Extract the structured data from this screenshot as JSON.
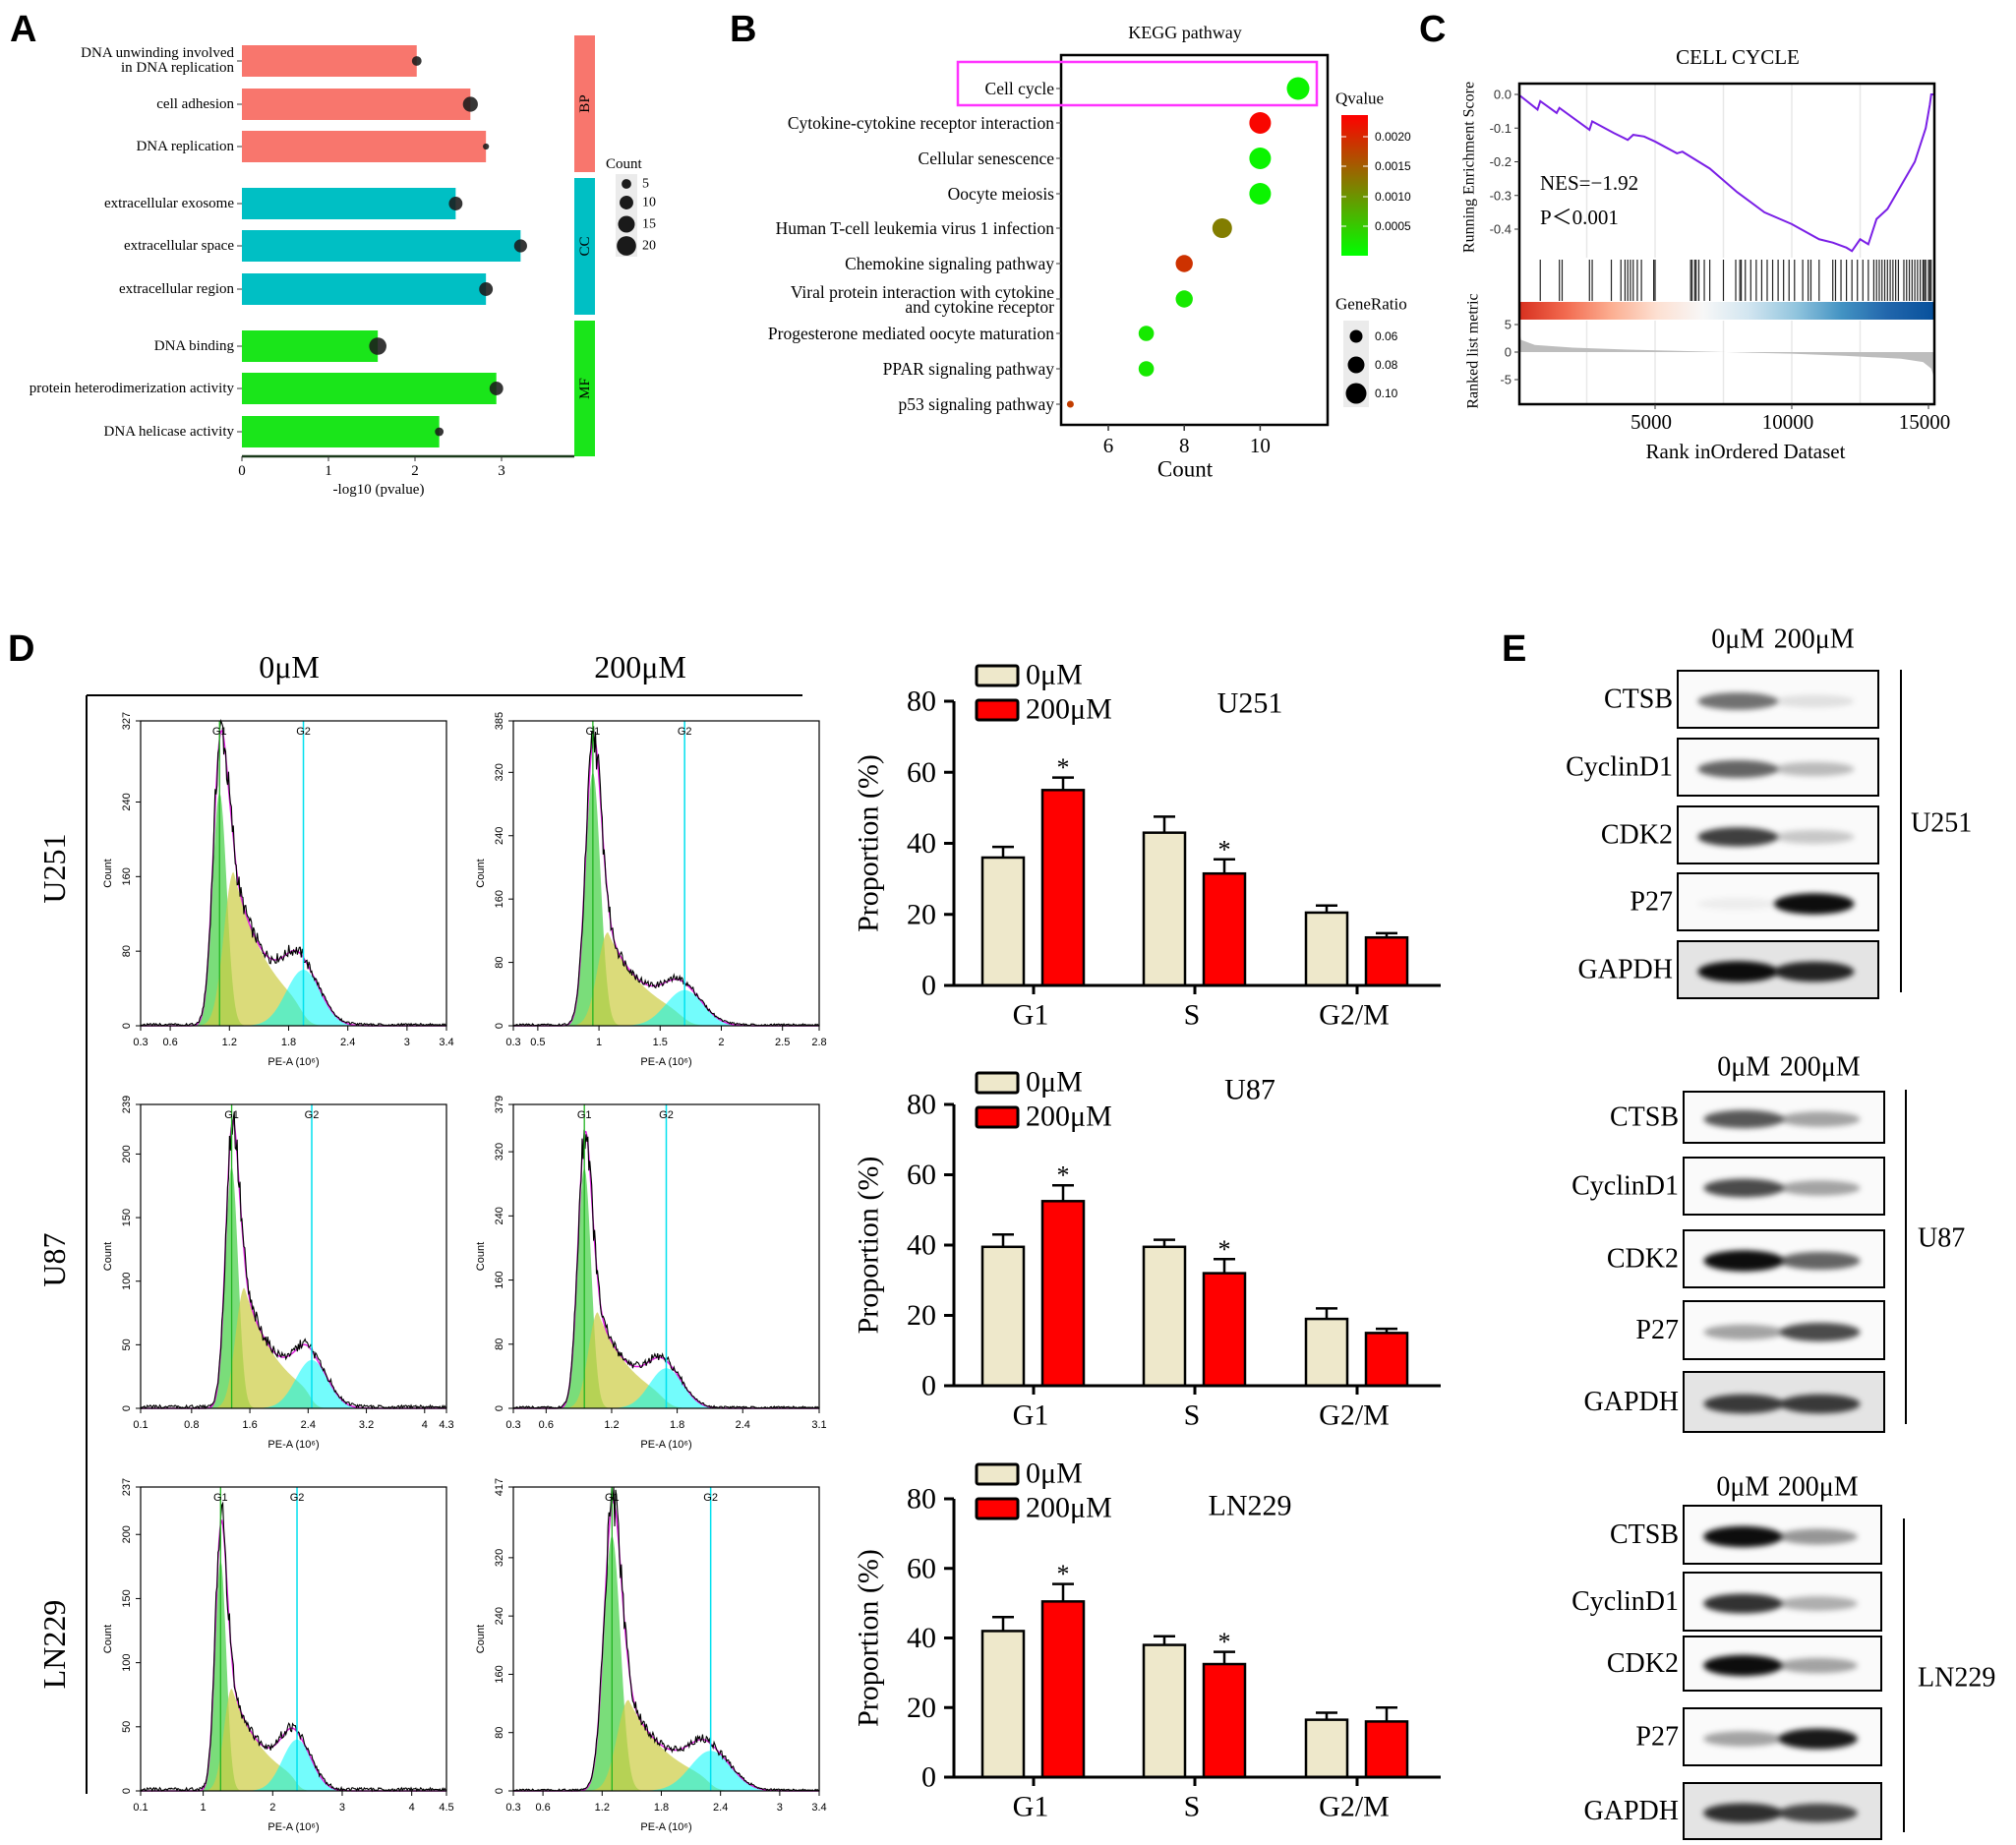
{
  "panel_labels": {
    "a": "A",
    "b": "B",
    "c": "C",
    "d": "D",
    "e": "E"
  },
  "chart_data": [
    {
      "type": "bar",
      "orientation": "horizontal",
      "xlabel": "-log10 (pvalue)",
      "xticks": [
        "0",
        "1",
        "2",
        "3"
      ],
      "groups": [
        {
          "name": "BP",
          "color": "#f8766d"
        },
        {
          "name": "CC",
          "color": "#00bfc4"
        },
        {
          "name": "MF",
          "color": "#1ae51a"
        }
      ],
      "terms": [
        {
          "lines": [
            "DNA unwinding involved",
            "in DNA replication"
          ],
          "group": "BP",
          "value": 2.02,
          "count": 5
        },
        {
          "lines": [
            "cell adhesion"
          ],
          "group": "BP",
          "value": 2.64,
          "count": 12
        },
        {
          "lines": [
            "DNA replication"
          ],
          "group": "BP",
          "value": 2.82,
          "count": 2
        },
        {
          "lines": [
            "extracellular exosome"
          ],
          "group": "CC",
          "value": 2.47,
          "count": 10
        },
        {
          "lines": [
            "extracellular space"
          ],
          "group": "CC",
          "value": 3.22,
          "count": 9
        },
        {
          "lines": [
            "extracellular region"
          ],
          "group": "CC",
          "value": 2.82,
          "count": 10
        },
        {
          "lines": [
            "DNA binding"
          ],
          "group": "MF",
          "value": 1.57,
          "count": 16
        },
        {
          "lines": [
            "protein heterodimerization activity"
          ],
          "group": "MF",
          "value": 2.94,
          "count": 10
        },
        {
          "lines": [
            "DNA helicase activity"
          ],
          "group": "MF",
          "value": 2.28,
          "count": 4
        }
      ],
      "legend": {
        "title": "Count",
        "sizes": [
          "5",
          "10",
          "15",
          "20"
        ]
      }
    },
    {
      "type": "scatter",
      "title": "KEGG pathway",
      "xlabel": "Count",
      "xticks": [
        "6",
        "8",
        "10"
      ],
      "highlighted": "Cell cycle",
      "highlight_color": "#ff33ff",
      "pathways": [
        {
          "lines": [
            "Cell cycle"
          ],
          "count": 11,
          "qvalue": 0.0001,
          "gene_ratio": 0.11
        },
        {
          "lines": [
            "Cytokine-cytokine receptor interaction"
          ],
          "count": 10,
          "qvalue": 0.0023,
          "gene_ratio": 0.105
        },
        {
          "lines": [
            "Cellular senescence"
          ],
          "count": 10,
          "qvalue": 0.0001,
          "gene_ratio": 0.105
        },
        {
          "lines": [
            "Oocyte meiosis"
          ],
          "count": 10,
          "qvalue": 0.0001,
          "gene_ratio": 0.105
        },
        {
          "lines": [
            "Human T-cell leukemia virus 1 infection"
          ],
          "count": 9,
          "qvalue": 0.0012,
          "gene_ratio": 0.095
        },
        {
          "lines": [
            "Chemokine signaling pathway"
          ],
          "count": 8,
          "qvalue": 0.0019,
          "gene_ratio": 0.082
        },
        {
          "lines": [
            "Viral protein interaction with cytokine",
            "and cytokine receptor"
          ],
          "count": 8,
          "qvalue": 0.0002,
          "gene_ratio": 0.082
        },
        {
          "lines": [
            "Progesterone mediated oocyte maturation"
          ],
          "count": 7,
          "qvalue": 0.0002,
          "gene_ratio": 0.073
        },
        {
          "lines": [
            "PPAR signaling pathway"
          ],
          "count": 7,
          "qvalue": 0.0002,
          "gene_ratio": 0.073
        },
        {
          "lines": [
            "p53 signaling pathway"
          ],
          "count": 5,
          "qvalue": 0.0018,
          "gene_ratio": 0.03
        }
      ],
      "qvalue_legend": {
        "title": "Qvalue",
        "ticks": [
          "0.0020",
          "0.0015",
          "0.0010",
          "0.0005"
        ],
        "low_color": "#00ff00",
        "high_color": "#ff0000",
        "range": [
          0,
          0.00236
        ]
      },
      "generatio_legend": {
        "title": "GeneRatio",
        "ticks": [
          "0.06",
          "0.08",
          "0.10"
        ],
        "values": [
          0.06,
          0.08,
          0.1
        ]
      }
    },
    {
      "type": "line",
      "title": "CELL CYCLE",
      "ylabel": "Running Enrichment Score",
      "ylabel_lower": "Ranked list metric",
      "xlabel": "Rank inOrdered Dataset",
      "xticks": [
        "5000",
        "10000",
        "15000"
      ],
      "yticks": [
        "0.0",
        "-0.1",
        "-0.2",
        "-0.3",
        "-0.4"
      ],
      "yticks_lower": [
        "5",
        "0",
        "-5"
      ],
      "nes_label": "NES=−1.92",
      "p_label": "P＜0.001",
      "line_color": "#7a1fe6",
      "es_curve": [
        [
          0,
          0
        ],
        [
          700,
          -0.045
        ],
        [
          800,
          -0.02
        ],
        [
          1400,
          -0.055
        ],
        [
          1500,
          -0.04
        ],
        [
          2600,
          -0.105
        ],
        [
          2700,
          -0.08
        ],
        [
          3500,
          -0.115
        ],
        [
          4000,
          -0.135
        ],
        [
          4200,
          -0.12
        ],
        [
          4600,
          -0.125
        ],
        [
          5000,
          -0.14
        ],
        [
          5800,
          -0.175
        ],
        [
          6000,
          -0.17
        ],
        [
          7000,
          -0.22
        ],
        [
          8000,
          -0.29
        ],
        [
          9000,
          -0.35
        ],
        [
          10000,
          -0.385
        ],
        [
          11000,
          -0.43
        ],
        [
          11500,
          -0.44
        ],
        [
          12000,
          -0.455
        ],
        [
          12200,
          -0.465
        ],
        [
          12500,
          -0.43
        ],
        [
          12800,
          -0.445
        ],
        [
          13100,
          -0.37
        ],
        [
          13500,
          -0.34
        ],
        [
          14000,
          -0.27
        ],
        [
          14500,
          -0.2
        ],
        [
          14900,
          -0.1
        ],
        [
          15050,
          -0.03
        ],
        [
          15100,
          0.0
        ],
        [
          15200,
          0.0
        ]
      ],
      "hits": [
        800,
        1500,
        1600,
        2600,
        2700,
        3400,
        3750,
        3900,
        4000,
        4100,
        4200,
        4350,
        4500,
        4950,
        5000,
        6300,
        6350,
        6450,
        6500,
        6600,
        6800,
        7000,
        7500,
        7950,
        8100,
        8150,
        8300,
        8500,
        8700,
        8900,
        9100,
        9300,
        9500,
        9700,
        9900,
        10100,
        10400,
        10600,
        10700,
        11000,
        11500,
        11600,
        11800,
        12000,
        12200,
        12400,
        12600,
        12800,
        13000,
        13100,
        13200,
        13300,
        13400,
        13500,
        13600,
        13700,
        13800,
        13900,
        14100,
        14200,
        14300,
        14400,
        14500,
        14600,
        14700,
        14800,
        14850,
        14900,
        15000,
        15050,
        15100
      ],
      "metric_curve": [
        [
          0,
          4.5
        ],
        [
          100,
          2.2
        ],
        [
          600,
          1.3
        ],
        [
          2000,
          0.8
        ],
        [
          4000,
          0.45
        ],
        [
          6000,
          0.2
        ],
        [
          7600,
          0
        ],
        [
          10000,
          -0.3
        ],
        [
          12000,
          -0.7
        ],
        [
          14000,
          -1.2
        ],
        [
          14800,
          -1.8
        ],
        [
          15100,
          -3.0
        ],
        [
          15200,
          -4.5
        ]
      ],
      "strip_colors": [
        "#d7301f",
        "#f26a4f",
        "#fcae91",
        "#fde0d2",
        "#f7f7f7",
        "#d1e5f0",
        "#92c5de",
        "#4393c3",
        "#2166ac",
        "#08519c"
      ]
    },
    {
      "type": "area",
      "column_headers": [
        "0μM",
        "200μM"
      ],
      "row_labels": [
        "U251",
        "U87",
        "LN229"
      ],
      "xlabel": "PE-A (10⁶)",
      "ylabel": "Count",
      "gate_labels": [
        "G1",
        "G2"
      ],
      "plots": [
        [
          {
            "xticks": [
              0.3,
              0.6,
              1.2,
              1.8,
              2.4,
              3,
              3.4
            ],
            "yticks": [
              0,
              80,
              160,
              240,
              327
            ],
            "g1": 1.1,
            "g2": 1.95,
            "g1_height": 250,
            "s_height": 165,
            "g2_height": 60
          },
          {
            "xticks": [
              0.3,
              0.5,
              1,
              1.5,
              2,
              2.5,
              2.8
            ],
            "yticks": [
              0,
              80,
              160,
              240,
              320,
              385
            ],
            "g1": 0.95,
            "g2": 1.7,
            "g1_height": 320,
            "s_height": 118,
            "g2_height": 45
          }
        ],
        [
          {
            "xticks": [
              0.1,
              0.8,
              1.6,
              2.4,
              3.2,
              4,
              4.3
            ],
            "yticks": [
              0,
              50,
              100,
              150,
              200,
              239
            ],
            "g1": 1.35,
            "g2": 2.45,
            "g1_height": 190,
            "s_height": 95,
            "g2_height": 38
          },
          {
            "xticks": [
              0.3,
              0.6,
              1.2,
              1.8,
              2.4,
              3.1
            ],
            "yticks": [
              0,
              80,
              160,
              240,
              320,
              379
            ],
            "g1": 0.95,
            "g2": 1.7,
            "g1_height": 300,
            "s_height": 120,
            "g2_height": 50
          }
        ],
        [
          {
            "xticks": [
              0.1,
              1,
              2,
              3,
              4,
              4.5
            ],
            "yticks": [
              0,
              50,
              100,
              150,
              200,
              237
            ],
            "g1": 1.25,
            "g2": 2.35,
            "g1_height": 180,
            "s_height": 80,
            "g2_height": 40
          },
          {
            "xticks": [
              0.3,
              0.6,
              1.2,
              1.8,
              2.4,
              3,
              3.4
            ],
            "yticks": [
              0,
              80,
              160,
              240,
              320,
              417
            ],
            "g1": 1.3,
            "g2": 2.3,
            "g1_height": 350,
            "s_height": 125,
            "g2_height": 55
          }
        ]
      ]
    },
    {
      "type": "bar",
      "title": "U251",
      "categories": [
        "G1",
        "S",
        "G2/M"
      ],
      "ylabel": "Proportion (%)",
      "ylim": [
        0,
        80
      ],
      "yticks": [
        0,
        20,
        40,
        60,
        80
      ],
      "sig_marker": "*",
      "series": [
        {
          "name": "0μM",
          "color": "#eee8cb",
          "values": [
            36,
            43,
            20.5
          ],
          "errors": [
            3,
            4.5,
            2
          ],
          "significant": [
            false,
            false,
            false
          ]
        },
        {
          "name": "200μM",
          "color": "#ff0000",
          "values": [
            55,
            31.5,
            13.5
          ],
          "errors": [
            3.5,
            4,
            1.2
          ],
          "significant": [
            true,
            true,
            false
          ]
        }
      ]
    },
    {
      "type": "bar",
      "title": "U87",
      "categories": [
        "G1",
        "S",
        "G2/M"
      ],
      "ylabel": "Proportion (%)",
      "ylim": [
        0,
        80
      ],
      "yticks": [
        0,
        20,
        40,
        60,
        80
      ],
      "sig_marker": "*",
      "series": [
        {
          "name": "0μM",
          "color": "#eee8cb",
          "values": [
            39.5,
            39.5,
            19
          ],
          "errors": [
            3.5,
            2,
            3
          ],
          "significant": [
            false,
            false,
            false
          ]
        },
        {
          "name": "200μM",
          "color": "#ff0000",
          "values": [
            52.5,
            32,
            15
          ],
          "errors": [
            4.5,
            4,
            1.2
          ],
          "significant": [
            true,
            true,
            false
          ]
        }
      ]
    },
    {
      "type": "bar",
      "title": "LN229",
      "categories": [
        "G1",
        "S",
        "G2/M"
      ],
      "ylabel": "Proportion (%)",
      "ylim": [
        0,
        80
      ],
      "yticks": [
        0,
        20,
        40,
        60,
        80
      ],
      "sig_marker": "*",
      "series": [
        {
          "name": "0μM",
          "color": "#eee8cb",
          "values": [
            42,
            38,
            16.5
          ],
          "errors": [
            4,
            2.5,
            2
          ],
          "significant": [
            false,
            false,
            false
          ]
        },
        {
          "name": "200μM",
          "color": "#ff0000",
          "values": [
            50.5,
            32.5,
            16
          ],
          "errors": [
            5,
            3.5,
            4
          ],
          "significant": [
            true,
            true,
            false
          ]
        }
      ]
    }
  ],
  "western_blot": {
    "column_headers": [
      "0μM",
      "200μM"
    ],
    "blots": [
      {
        "cell_line": "U251",
        "proteins": [
          {
            "name": "CTSB",
            "intensity": [
              0.55,
              0.1
            ]
          },
          {
            "name": "CyclinD1",
            "intensity": [
              0.6,
              0.25
            ]
          },
          {
            "name": "CDK2",
            "intensity": [
              0.75,
              0.2
            ]
          },
          {
            "name": "P27",
            "intensity": [
              0.05,
              0.95
            ]
          },
          {
            "name": "GAPDH",
            "intensity": [
              0.95,
              0.85
            ]
          }
        ]
      },
      {
        "cell_line": "U87",
        "proteins": [
          {
            "name": "CTSB",
            "intensity": [
              0.65,
              0.35
            ]
          },
          {
            "name": "CyclinD1",
            "intensity": [
              0.7,
              0.35
            ]
          },
          {
            "name": "CDK2",
            "intensity": [
              0.95,
              0.6
            ]
          },
          {
            "name": "P27",
            "intensity": [
              0.35,
              0.7
            ]
          },
          {
            "name": "GAPDH",
            "intensity": [
              0.75,
              0.75
            ]
          }
        ]
      },
      {
        "cell_line": "LN229",
        "proteins": [
          {
            "name": "CTSB",
            "intensity": [
              0.95,
              0.4
            ]
          },
          {
            "name": "CyclinD1",
            "intensity": [
              0.8,
              0.3
            ]
          },
          {
            "name": "CDK2",
            "intensity": [
              0.95,
              0.35
            ]
          },
          {
            "name": "P27",
            "intensity": [
              0.35,
              0.9
            ]
          },
          {
            "name": "GAPDH",
            "intensity": [
              0.8,
              0.7
            ]
          }
        ]
      }
    ]
  }
}
